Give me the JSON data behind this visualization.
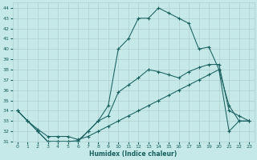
{
  "xlabel": "Humidex (Indice chaleur)",
  "bg_color": "#c5e8e8",
  "line_color": "#1a6060",
  "grid_color": "#afd0d0",
  "xlim": [
    -0.5,
    23.5
  ],
  "ylim": [
    31,
    44.5
  ],
  "xticks": [
    0,
    1,
    2,
    3,
    4,
    5,
    6,
    7,
    8,
    9,
    10,
    11,
    12,
    13,
    14,
    15,
    16,
    17,
    18,
    19,
    20,
    21,
    22,
    23
  ],
  "yticks": [
    31,
    32,
    33,
    34,
    35,
    36,
    37,
    38,
    39,
    40,
    41,
    42,
    43,
    44
  ],
  "series1_x": [
    0,
    1,
    2,
    3,
    4,
    5,
    6,
    7,
    8,
    9,
    10,
    11,
    12,
    13,
    14,
    15,
    16,
    17,
    18,
    19,
    20,
    21,
    22,
    23
  ],
  "series1_y": [
    34.0,
    33.0,
    32.0,
    31.0,
    31.0,
    31.0,
    31.1,
    32.0,
    33.0,
    33.5,
    35.8,
    36.5,
    37.2,
    38.0,
    37.8,
    37.5,
    37.2,
    37.8,
    38.2,
    38.5,
    38.5,
    34.0,
    33.5,
    33.0
  ],
  "series2_x": [
    0,
    1,
    2,
    3,
    4,
    5,
    6,
    7,
    8,
    9,
    10,
    11,
    12,
    13,
    14,
    15,
    16,
    17,
    18,
    19,
    20,
    21,
    22,
    23
  ],
  "series2_y": [
    34.0,
    33.0,
    32.0,
    31.0,
    31.0,
    31.0,
    31.0,
    32.0,
    33.0,
    34.5,
    40.0,
    41.0,
    43.0,
    43.0,
    44.0,
    43.5,
    43.0,
    42.5,
    40.0,
    40.2,
    38.0,
    34.5,
    33.0,
    33.0
  ],
  "series3_x": [
    0,
    1,
    2,
    3,
    4,
    5,
    6,
    7,
    8,
    9,
    10,
    11,
    12,
    13,
    14,
    15,
    16,
    17,
    18,
    19,
    20,
    21,
    22,
    23
  ],
  "series3_y": [
    34.0,
    33.0,
    32.2,
    31.5,
    31.5,
    31.5,
    31.2,
    31.5,
    32.0,
    32.5,
    33.0,
    33.5,
    34.0,
    34.5,
    35.0,
    35.5,
    36.0,
    36.5,
    37.0,
    37.5,
    38.0,
    32.0,
    33.0,
    33.0
  ]
}
